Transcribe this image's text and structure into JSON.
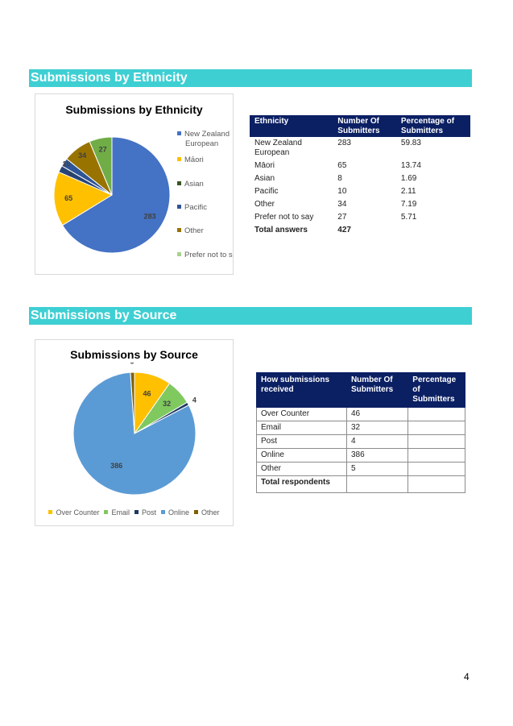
{
  "sections": {
    "ethnicity_heading": "Submissions by Ethnicity",
    "source_heading": "Submissions by Source"
  },
  "chart_data": [
    {
      "type": "pie",
      "title": "Submissions by Ethnicity",
      "categories": [
        "New Zealand European",
        "Māori",
        "Asian",
        "Pacific",
        "Other",
        "Prefer not to say"
      ],
      "values": [
        283,
        65,
        8,
        10,
        34,
        27
      ],
      "colors": [
        "#4472c4",
        "#ffc000",
        "#264478",
        "#2f5597",
        "#997300",
        "#70ad47"
      ],
      "legend_labels": [
        "New Zealand",
        "European",
        "Māori",
        "Asian",
        "Pacific",
        "Other",
        "Prefer not to sa"
      ],
      "legend_position": "right"
    },
    {
      "type": "pie",
      "title": "Submissions by Source",
      "categories": [
        "Over Counter",
        "Email",
        "Post",
        "Online",
        "Other"
      ],
      "values": [
        46,
        32,
        4,
        386,
        5
      ],
      "colors": [
        "#ffc000",
        "#7fc95f",
        "#1f3864",
        "#5b9bd5",
        "#7f6000"
      ],
      "legend_position": "bottom"
    }
  ],
  "ethnicity_table": {
    "headers": [
      "Ethnicity",
      "Number Of Submitters",
      "Percentage of Submitters"
    ],
    "rows": [
      [
        "New Zealand European",
        "283",
        "59.83"
      ],
      [
        "Māori",
        "65",
        "13.74"
      ],
      [
        "Asian",
        "8",
        "1.69"
      ],
      [
        "Pacific",
        "10",
        "2.11"
      ],
      [
        "Other",
        "34",
        "7.19"
      ],
      [
        "Prefer not to say",
        "27",
        "5.71"
      ]
    ],
    "total": [
      "Total answers",
      "427",
      ""
    ]
  },
  "source_table": {
    "headers": [
      "How submissions received",
      "Number Of Submitters",
      "Percentage of Submitters"
    ],
    "rows": [
      [
        "Over Counter",
        "46",
        ""
      ],
      [
        "Email",
        "32",
        ""
      ],
      [
        "Post",
        "4",
        ""
      ],
      [
        "Online",
        "386",
        ""
      ],
      [
        "Other",
        "5",
        ""
      ]
    ],
    "total": [
      "Total respondents",
      "",
      ""
    ]
  },
  "page_number": "4"
}
